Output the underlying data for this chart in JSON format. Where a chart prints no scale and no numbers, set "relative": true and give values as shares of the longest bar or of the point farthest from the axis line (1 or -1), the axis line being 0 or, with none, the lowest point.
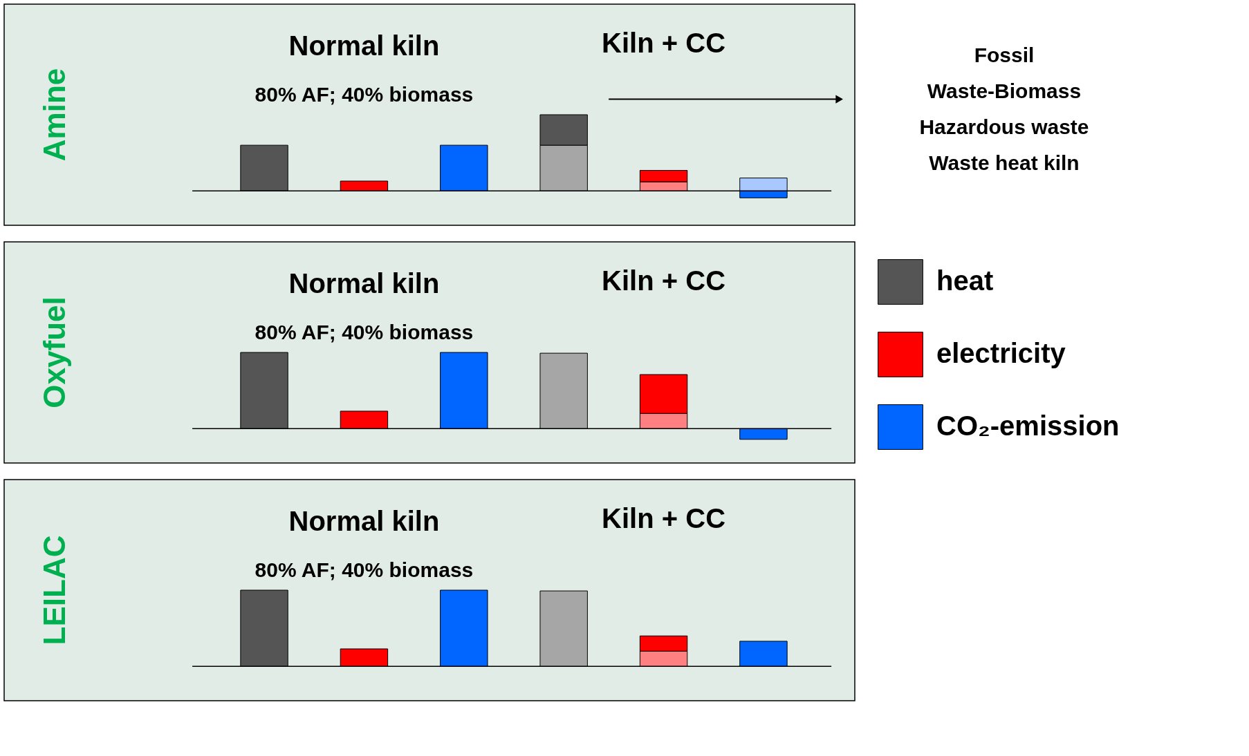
{
  "chart_data": [
    {
      "type": "bar",
      "title": "Amine",
      "stacked": true,
      "relative": true,
      "legend": "right",
      "categories": [
        null,
        null,
        null,
        null,
        null,
        null
      ],
      "annotations": [
        "Normal kiln",
        "80% AF; 40% biomass",
        "Kiln + CC",
        "Fossil",
        "Waste-Biomass",
        "Hazardous waste",
        "Waste heat kiln"
      ],
      "series": [
        {
          "color": "#a6a6a6",
          "values": [
            null,
            null,
            null,
            0.6,
            null,
            null
          ]
        },
        {
          "name": "heat",
          "color": "#555555",
          "values": [
            0.6,
            null,
            null,
            0.4,
            null,
            null
          ]
        },
        {
          "color": "#ff8080",
          "values": [
            null,
            null,
            null,
            null,
            0.12,
            null
          ]
        },
        {
          "name": "electricity",
          "color": "#ff0000",
          "values": [
            null,
            0.13,
            null,
            null,
            0.15,
            null
          ]
        },
        {
          "name": "CO₂-emission",
          "color": "#0066ff",
          "values": [
            null,
            null,
            0.6,
            null,
            null,
            -0.09
          ]
        },
        {
          "color": "#a8c8ff",
          "values": [
            null,
            null,
            null,
            null,
            null,
            0.17
          ]
        }
      ]
    },
    {
      "type": "bar",
      "title": "Oxyfuel",
      "stacked": true,
      "relative": true,
      "categories": [
        null,
        null,
        null,
        null,
        null,
        null
      ],
      "annotations": [
        "Normal kiln",
        "80% AF; 40% biomass",
        "Kiln + CC"
      ],
      "series": [
        {
          "color": "#a6a6a6",
          "values": [
            null,
            null,
            null,
            0.99,
            null,
            null
          ]
        },
        {
          "name": "heat",
          "color": "#555555",
          "values": [
            1,
            null,
            null,
            null,
            null,
            null
          ]
        },
        {
          "color": "#ff8080",
          "values": [
            null,
            null,
            null,
            null,
            0.2,
            null
          ]
        },
        {
          "name": "electricity",
          "color": "#ff0000",
          "values": [
            null,
            0.23,
            null,
            null,
            0.51,
            null
          ]
        },
        {
          "name": "CO₂-emission",
          "color": "#0066ff",
          "values": [
            null,
            null,
            1,
            null,
            null,
            -0.14
          ]
        }
      ]
    },
    {
      "type": "bar",
      "title": "LEILAC",
      "stacked": true,
      "relative": true,
      "categories": [
        null,
        null,
        null,
        null,
        null,
        null
      ],
      "annotations": [
        "Normal kiln",
        "80% AF; 40% biomass",
        "Kiln + CC"
      ],
      "series": [
        {
          "color": "#a6a6a6",
          "values": [
            null,
            null,
            null,
            0.99,
            null,
            null
          ]
        },
        {
          "name": "heat",
          "color": "#555555",
          "values": [
            1,
            null,
            null,
            null,
            null,
            null
          ]
        },
        {
          "color": "#ff8080",
          "values": [
            null,
            null,
            null,
            null,
            0.2,
            null
          ]
        },
        {
          "name": "electricity",
          "color": "#ff0000",
          "values": [
            null,
            0.23,
            null,
            null,
            0.2,
            null
          ]
        },
        {
          "name": "CO₂-emission",
          "color": "#0066ff",
          "values": [
            null,
            null,
            1,
            null,
            null,
            0.33
          ]
        }
      ]
    }
  ]
}
